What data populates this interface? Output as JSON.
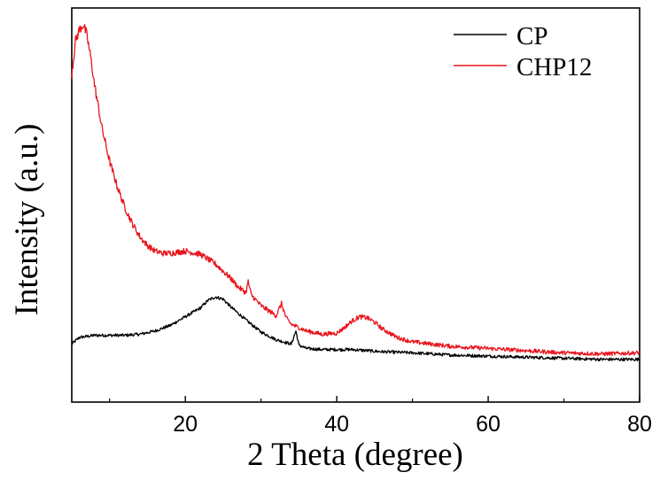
{
  "chart_data": {
    "type": "line",
    "xlabel": "2 Theta (degree)",
    "ylabel": "Intensity (a.u.)",
    "xlim": [
      5,
      80
    ],
    "x_ticks": [
      20,
      40,
      60,
      80
    ],
    "x_tick_labels": [
      "20",
      "40",
      "60",
      "80"
    ],
    "y_ticks_labeled": false,
    "grid": false,
    "legend_position": "top-right",
    "series": [
      {
        "name": "CP",
        "color": "#000000",
        "x": [
          5,
          6,
          8,
          10,
          12,
          14,
          16,
          18,
          20,
          22,
          23,
          24,
          25,
          26,
          28,
          30,
          32,
          34,
          34.6,
          35,
          36,
          38,
          40,
          42,
          44,
          46,
          50,
          55,
          60,
          65,
          70,
          75,
          80
        ],
        "y": [
          0.13,
          0.19,
          0.21,
          0.21,
          0.21,
          0.22,
          0.25,
          0.3,
          0.38,
          0.46,
          0.53,
          0.56,
          0.54,
          0.47,
          0.35,
          0.24,
          0.17,
          0.13,
          0.25,
          0.12,
          0.09,
          0.08,
          0.08,
          0.08,
          0.07,
          0.06,
          0.05,
          0.03,
          0.02,
          0.01,
          0.0,
          -0.01,
          -0.01
        ]
      },
      {
        "name": "CHP12",
        "color": "#e8141c",
        "x": [
          5,
          5.5,
          6,
          6.5,
          7,
          7.5,
          8,
          9,
          10,
          11,
          12,
          13,
          14,
          15,
          16,
          17,
          18,
          20,
          22,
          24,
          26,
          27,
          28,
          28.3,
          28.7,
          30,
          32,
          32.7,
          33.3,
          34,
          36,
          38,
          40,
          41,
          42,
          43,
          44,
          45,
          46,
          48,
          50,
          55,
          60,
          65,
          70,
          75,
          80
        ],
        "y": [
          2.6,
          2.9,
          3.0,
          3.05,
          2.95,
          2.75,
          2.5,
          2.1,
          1.8,
          1.57,
          1.38,
          1.23,
          1.11,
          1.03,
          0.98,
          0.96,
          0.96,
          0.98,
          0.95,
          0.86,
          0.73,
          0.65,
          0.6,
          0.7,
          0.58,
          0.48,
          0.39,
          0.5,
          0.37,
          0.31,
          0.25,
          0.22,
          0.23,
          0.28,
          0.34,
          0.38,
          0.37,
          0.33,
          0.27,
          0.19,
          0.15,
          0.11,
          0.09,
          0.07,
          0.05,
          0.04,
          0.05
        ]
      }
    ]
  }
}
